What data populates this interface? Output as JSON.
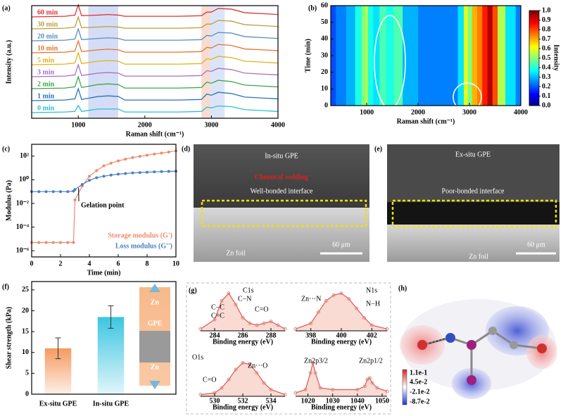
{
  "chart_data": [
    {
      "type": "line",
      "stacked": true,
      "label": "(a)",
      "xlabel": "Raman shift (cm⁻¹)",
      "ylabel": "Intensity (a.u.)",
      "xlim": [
        300,
        4000
      ],
      "xticks": [
        1000,
        2000,
        3000,
        4000
      ],
      "shaded_regions": [
        {
          "range": [
            1150,
            1600
          ],
          "color": "#c9d5f2"
        },
        {
          "range": [
            2850,
            2980
          ],
          "color": "#f6d3c4"
        },
        {
          "range": [
            2980,
            3200
          ],
          "color": "#d3def5"
        }
      ],
      "x": [
        300,
        800,
        950,
        1000,
        1050,
        1300,
        1450,
        1600,
        1700,
        2500,
        2850,
        2930,
        3000,
        3100,
        3300,
        3500,
        4000
      ],
      "series": [
        {
          "name": "0 min",
          "color": "#2fbfd0",
          "values": [
            0,
            0.05,
            0.1,
            0.6,
            0.1,
            0.3,
            0.3,
            0.3,
            0.05,
            0.05,
            0.1,
            0.45,
            0.4,
            0.55,
            0.5,
            0.25,
            0.1
          ]
        },
        {
          "name": "1 min",
          "color": "#2a72c0",
          "values": [
            0,
            0.05,
            0.15,
            1.0,
            0.1,
            0.35,
            0.4,
            0.35,
            0.05,
            0.05,
            0.1,
            0.55,
            0.45,
            0.7,
            0.6,
            0.3,
            0.15
          ]
        },
        {
          "name": "2 min",
          "color": "#3ea84a",
          "values": [
            0,
            0.05,
            0.15,
            1.0,
            0.1,
            0.35,
            0.4,
            0.35,
            0.05,
            0.05,
            0.1,
            0.55,
            0.45,
            0.7,
            0.6,
            0.3,
            0.15
          ]
        },
        {
          "name": "3 min",
          "color": "#a373c6",
          "values": [
            0,
            0.05,
            0.15,
            1.0,
            0.1,
            0.3,
            0.35,
            0.3,
            0.05,
            0.05,
            0.1,
            0.5,
            0.45,
            0.7,
            0.6,
            0.3,
            0.15
          ]
        },
        {
          "name": "5 min",
          "color": "#e2b21e",
          "values": [
            0,
            0.05,
            0.15,
            1.0,
            0.1,
            0.3,
            0.35,
            0.3,
            0.05,
            0.05,
            0.1,
            0.5,
            0.45,
            0.7,
            0.6,
            0.3,
            0.15
          ]
        },
        {
          "name": "10 min",
          "color": "#e57430",
          "values": [
            0,
            0.05,
            0.15,
            1.0,
            0.1,
            0.25,
            0.3,
            0.25,
            0.05,
            0.05,
            0.1,
            0.45,
            0.4,
            0.7,
            0.62,
            0.32,
            0.18
          ]
        },
        {
          "name": "20 min",
          "color": "#5a8fc2",
          "values": [
            0,
            0.05,
            0.15,
            1.0,
            0.1,
            0.2,
            0.25,
            0.2,
            0.05,
            0.05,
            0.1,
            0.45,
            0.4,
            0.7,
            0.65,
            0.35,
            0.2
          ]
        },
        {
          "name": "30 min",
          "color": "#b9a142",
          "values": [
            0,
            0.05,
            0.15,
            1.0,
            0.1,
            0.15,
            0.2,
            0.15,
            0.05,
            0.05,
            0.1,
            0.4,
            0.4,
            0.7,
            0.65,
            0.35,
            0.2
          ]
        },
        {
          "name": "60 min",
          "color": "#df3333",
          "values": [
            0,
            0.05,
            0.15,
            1.0,
            0.1,
            0.15,
            0.2,
            0.15,
            0.05,
            0.05,
            0.1,
            0.4,
            0.4,
            0.7,
            0.65,
            0.35,
            0.2
          ]
        }
      ]
    },
    {
      "type": "heatmap",
      "label": "(b)",
      "xlabel": "Raman shift (cm⁻¹)",
      "ylabel": "Time (min)",
      "colorbar_label": "Intensity",
      "colormap": "jet",
      "clim": [
        0,
        1
      ],
      "xlim": [
        300,
        4000
      ],
      "ylim": [
        0,
        60
      ],
      "xticks": [
        1000,
        2000,
        3000,
        4000
      ],
      "yticks": [
        0,
        10,
        20,
        30,
        40,
        50,
        60
      ],
      "cticks": [
        {
          "value": 0,
          "label": "0.0"
        },
        {
          "value": 0.1,
          "label": "0.1"
        },
        {
          "value": 0.2,
          "label": "0.2"
        },
        {
          "value": 0.3,
          "label": "0.3"
        },
        {
          "value": 0.4,
          "label": "0.4"
        },
        {
          "value": 0.5,
          "label": "0.5"
        },
        {
          "value": 0.6,
          "label": "0.6"
        },
        {
          "value": 0.7,
          "label": "0.7"
        },
        {
          "value": 0.8,
          "label": "0.8"
        },
        {
          "value": 0.9,
          "label": "0.9"
        },
        {
          "value": 1,
          "label": "1.0"
        }
      ],
      "x": [
        300,
        500,
        700,
        850,
        950,
        1000,
        1050,
        1200,
        1300,
        1450,
        1600,
        1800,
        2200,
        2700,
        2850,
        2930,
        3000,
        3100,
        3200,
        3300,
        3400,
        3500,
        3600,
        3800,
        4000
      ],
      "values": [
        0.2,
        0.25,
        0.3,
        0.4,
        0.5,
        0.55,
        0.4,
        0.35,
        0.45,
        0.4,
        0.45,
        0.3,
        0.25,
        0.25,
        0.35,
        0.6,
        0.5,
        0.7,
        0.75,
        0.85,
        0.95,
        0.8,
        0.55,
        0.35,
        0.25
      ]
    },
    {
      "type": "line",
      "label": "(c)",
      "xlabel": "Time (min)",
      "ylabel": "Modulus (Pa)",
      "yscale": "log",
      "xlim": [
        0,
        10
      ],
      "ylim": [
        3e-07,
        1000
      ],
      "xticks": [
        0,
        2,
        4,
        6,
        8,
        10
      ],
      "yticks": [
        {
          "value": 1e-06,
          "label": "10⁻⁶"
        },
        {
          "value": 0.0001,
          "label": "10⁻⁴"
        },
        {
          "value": 0.01,
          "label": "10⁻²"
        },
        {
          "value": 1,
          "label": "10⁰"
        },
        {
          "value": 100,
          "label": "10²"
        }
      ],
      "annotations": [
        "Gelation point"
      ],
      "x": [
        0,
        0.5,
        1,
        1.5,
        2,
        2.5,
        2.9,
        3,
        3.5,
        4,
        4.5,
        5,
        5.5,
        6,
        6.5,
        7,
        7.5,
        8,
        8.5,
        9,
        9.5,
        10
      ],
      "series": [
        {
          "name": "Storage modulus (G')",
          "color": "#ef8a6c",
          "values": [
            5e-06,
            5e-06,
            5e-06,
            5e-06,
            5e-06,
            5e-06,
            5e-06,
            0.02,
            0.3,
            2,
            6,
            15,
            25,
            40,
            55,
            75,
            95,
            120,
            150,
            180,
            220,
            280
          ]
        },
        {
          "name": "Loss modulus (G'')",
          "color": "#4a7fc2",
          "values": [
            0.1,
            0.1,
            0.1,
            0.1,
            0.1,
            0.1,
            0.11,
            0.15,
            0.4,
            0.9,
            1.5,
            2,
            2.5,
            3,
            3.4,
            3.8,
            4.1,
            4.4,
            4.7,
            4.9,
            5.1,
            5.3
          ]
        }
      ]
    },
    {
      "type": "bar",
      "label": "(f)",
      "ylabel": "Shear strength (kPa)",
      "categories": [
        "Ex-situ GPE",
        "In-situ GPE"
      ],
      "values": [
        11,
        18.5
      ],
      "errors": [
        2.5,
        2.7
      ],
      "colors": [
        "#f59a60",
        "#3cc6e0"
      ],
      "ylim": [
        0,
        27
      ],
      "yticks": [
        0,
        5,
        10,
        15,
        20,
        25
      ],
      "annotations": [
        "Zn",
        "GPE",
        "Zn"
      ]
    },
    {
      "type": "line",
      "label": "(g)",
      "title": "C1s",
      "xlabel": "Binding energy (eV)",
      "xlim": [
        283,
        289
      ],
      "xticks": [
        284,
        286,
        288
      ],
      "annotations": [
        "C−C",
        "C=C",
        "C−N",
        "C=O"
      ],
      "x": [
        283,
        284,
        284.5,
        285,
        285.5,
        286,
        286.5,
        287,
        287.5,
        288,
        288.5,
        289
      ],
      "series": [
        {
          "color": "#d85a50",
          "values": [
            0.05,
            0.3,
            0.8,
            1.0,
            0.7,
            0.35,
            0.2,
            0.15,
            0.2,
            0.25,
            0.15,
            0.05
          ]
        }
      ]
    },
    {
      "type": "line",
      "title": "N1s",
      "xlabel": "Binding energy (eV)",
      "xlim": [
        397,
        403
      ],
      "xticks": [
        398,
        400,
        402
      ],
      "annotations": [
        "Zn···N",
        "N−H"
      ],
      "x": [
        397,
        398,
        398.5,
        399,
        399.5,
        400,
        400.5,
        401,
        401.5,
        402,
        403
      ],
      "series": [
        {
          "color": "#d85a50",
          "values": [
            0.05,
            0.2,
            0.5,
            0.8,
            0.95,
            1.0,
            0.85,
            0.6,
            0.35,
            0.15,
            0.05
          ]
        }
      ]
    },
    {
      "type": "line",
      "title": "O1s",
      "xlabel": "Binding energy (eV)",
      "xlim": [
        529,
        535
      ],
      "xticks": [
        530,
        532,
        534
      ],
      "annotations": [
        "C=O",
        "Zn···O"
      ],
      "x": [
        529,
        530,
        530.5,
        531,
        531.5,
        532,
        532.5,
        533,
        533.5,
        534,
        535
      ],
      "series": [
        {
          "color": "#d85a50",
          "values": [
            0.05,
            0.1,
            0.25,
            0.5,
            0.8,
            1.0,
            0.95,
            0.7,
            0.4,
            0.2,
            0.05
          ]
        }
      ]
    },
    {
      "type": "line",
      "xlabel": "Binding energy (eV)",
      "xlim": [
        1015,
        1052
      ],
      "xticks": [
        1020,
        1030,
        1040,
        1050
      ],
      "annotations": [
        "Zn2p3/2",
        "Zn2p1/2"
      ],
      "x": [
        1015,
        1019,
        1021,
        1022,
        1023,
        1025,
        1030,
        1040,
        1043,
        1044,
        1045,
        1046,
        1048,
        1052
      ],
      "series": [
        {
          "color": "#d85a50",
          "values": [
            0.1,
            0.2,
            0.7,
            1.0,
            0.7,
            0.25,
            0.2,
            0.2,
            0.3,
            0.5,
            0.55,
            0.4,
            0.25,
            0.15
          ]
        }
      ]
    }
  ],
  "images": [
    {
      "label": "(d)",
      "texts": [
        "In-situ GPE",
        "Chemical welding",
        "Well-bonded interface",
        "Zn foil",
        "60 μm"
      ]
    },
    {
      "label": "(e)",
      "texts": [
        "Ex-situ GPE",
        "Poor-bonded interface",
        "Zn foil",
        "60 μm"
      ]
    },
    {
      "label": "(h)",
      "texts": [
        "1.1e-1",
        "4.5e-2",
        "-2.1e-2",
        "-8.7e-2"
      ]
    }
  ]
}
